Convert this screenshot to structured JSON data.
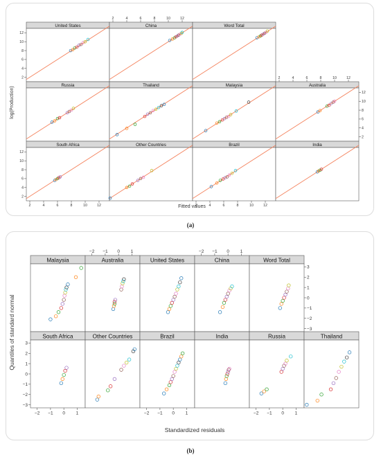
{
  "figure_a": {
    "caption": "(a)",
    "xlabel": "Fitted values",
    "ylabel": "log(Production)",
    "tick_labels": [
      "2",
      "4",
      "6",
      "8",
      "10",
      "12"
    ]
  },
  "figure_b": {
    "caption": "(b)",
    "xlabel": "Standardized residuals",
    "ylabel": "Quantiles of standard normal",
    "x_tick_labels": [
      "−2",
      "−1",
      "0",
      "1"
    ],
    "y_tick_labels": [
      "−3",
      "−2",
      "−1",
      "0",
      "1",
      "2",
      "3"
    ]
  },
  "colors": {
    "fit_line": "#f4845f",
    "strip_bg": "#d9d9d9",
    "series": [
      "#1f77b4",
      "#ff7f0e",
      "#2ca02c",
      "#d62728",
      "#9467bd",
      "#8c564b",
      "#e377c2",
      "#bcbd22",
      "#17becf",
      "#3a3a3a"
    ]
  },
  "chart_data": [
    {
      "type": "scatter",
      "title": "",
      "xlabel": "Fitted values",
      "ylabel": "log(Production)",
      "xlim": [
        1.5,
        13.5
      ],
      "ylim": [
        1,
        13
      ],
      "grid": false,
      "reference_line": "y = x",
      "panels": [
        {
          "name": "United States",
          "x": [
            7.9,
            8.2,
            8.5,
            8.8,
            9.1,
            9.4,
            9.7,
            10.0,
            10.4
          ],
          "y": [
            8.0,
            8.2,
            8.6,
            8.8,
            9.2,
            9.4,
            9.8,
            10.0,
            10.5
          ]
        },
        {
          "name": "China",
          "x": [
            10.2,
            10.6,
            10.9,
            11.1,
            11.3,
            11.5,
            11.7,
            11.9,
            12.0
          ],
          "y": [
            10.3,
            10.6,
            10.9,
            11.1,
            11.3,
            11.5,
            11.7,
            11.9,
            12.1
          ]
        },
        {
          "name": "Word Total",
          "x": [
            10.8,
            11.1,
            11.3,
            11.5,
            11.7,
            11.9,
            12.1,
            12.3
          ],
          "y": [
            10.9,
            11.1,
            11.3,
            11.5,
            11.7,
            11.9,
            12.1,
            12.4
          ]
        },
        {
          "name": "Russia",
          "x": [
            5.2,
            5.6,
            6.0,
            6.3,
            7.4,
            7.7,
            8.0,
            8.3
          ],
          "y": [
            5.3,
            5.6,
            6.1,
            6.3,
            7.4,
            7.7,
            8.0,
            8.4
          ]
        },
        {
          "name": "Thailand",
          "x": [
            2.6,
            4.0,
            5.2,
            6.6,
            7.0,
            7.4,
            7.8,
            8.2,
            8.6,
            9.0,
            9.4
          ],
          "y": [
            2.5,
            3.9,
            4.8,
            6.6,
            7.1,
            7.4,
            7.9,
            8.2,
            8.6,
            9.0,
            9.3
          ]
        },
        {
          "name": "Malaysia",
          "x": [
            3.4,
            5.0,
            5.4,
            5.8,
            6.1,
            6.4,
            6.7,
            7.0,
            7.8,
            9.6
          ],
          "y": [
            3.4,
            5.1,
            5.4,
            5.8,
            6.1,
            6.4,
            6.6,
            7.0,
            7.8,
            9.8
          ]
        },
        {
          "name": "Australia",
          "x": [
            7.6,
            7.9,
            8.9,
            9.2,
            9.5,
            9.8,
            10.0
          ],
          "y": [
            7.6,
            7.9,
            8.9,
            9.1,
            9.5,
            9.8,
            10.0
          ]
        },
        {
          "name": "South Africa",
          "x": [
            5.6,
            5.8,
            6.0,
            6.2,
            6.4
          ],
          "y": [
            5.6,
            5.8,
            6.0,
            6.2,
            6.4
          ]
        },
        {
          "name": "Other Countries",
          "x": [
            1.6,
            4.0,
            4.4,
            4.8,
            5.6,
            6.0,
            6.4,
            7.6
          ],
          "y": [
            1.6,
            4.0,
            4.3,
            4.8,
            5.6,
            6.0,
            6.3,
            7.8
          ]
        },
        {
          "name": "Brazil",
          "x": [
            4.2,
            5.0,
            5.5,
            5.9,
            6.2,
            6.5,
            6.8,
            7.2,
            7.7
          ],
          "y": [
            4.2,
            5.0,
            5.6,
            5.9,
            6.2,
            6.4,
            6.8,
            7.2,
            7.8
          ]
        },
        {
          "name": "India",
          "x": [
            7.5,
            7.7,
            7.9,
            8.1
          ],
          "y": [
            7.5,
            7.7,
            7.9,
            8.1
          ]
        }
      ]
    },
    {
      "type": "scatter",
      "title": "",
      "xlabel": "Standardized residuals",
      "ylabel": "Quantiles of standard normal",
      "xlim": [
        -2.5,
        1.6
      ],
      "ylim": [
        -3.3,
        3.3
      ],
      "grid": false,
      "panels": [
        {
          "name": "Malaysia",
          "x": [
            -1.0,
            -0.6,
            -0.4,
            -0.2,
            -0.1,
            0.0,
            0.05,
            0.1,
            0.15,
            0.2,
            0.3,
            0.9,
            1.3
          ],
          "y": [
            -2.1,
            -1.8,
            -1.4,
            -1.0,
            -0.6,
            -0.2,
            0.2,
            0.5,
            0.8,
            1.0,
            1.3,
            2.0,
            2.9
          ]
        },
        {
          "name": "Australia",
          "x": [
            -0.4,
            -0.35,
            -0.3,
            -0.3,
            -0.25,
            0.2,
            0.25,
            0.3,
            0.35,
            0.4
          ],
          "y": [
            -1.1,
            -0.8,
            -0.6,
            -0.4,
            -0.2,
            0.8,
            1.1,
            1.4,
            1.6,
            1.8
          ]
        },
        {
          "name": "United States",
          "x": [
            -0.4,
            -0.3,
            -0.2,
            -0.1,
            0.0,
            0.1,
            0.2,
            0.3,
            0.4,
            0.5,
            0.6
          ],
          "y": [
            -1.4,
            -1.1,
            -0.8,
            -0.5,
            -0.2,
            0.1,
            0.4,
            0.8,
            1.1,
            1.5,
            1.9
          ]
        },
        {
          "name": "China",
          "x": [
            -0.6,
            -0.4,
            -0.3,
            -0.2,
            -0.1,
            0.0,
            0.1,
            0.2,
            0.3
          ],
          "y": [
            -1.4,
            -0.9,
            -0.5,
            -0.2,
            0.1,
            0.4,
            0.7,
            0.9,
            1.1
          ]
        },
        {
          "name": "Word Total",
          "x": [
            -0.2,
            -0.1,
            0.0,
            0.1,
            0.2,
            0.3,
            0.4,
            0.45
          ],
          "y": [
            -1.0,
            -0.6,
            -0.3,
            0.0,
            0.3,
            0.6,
            0.9,
            1.2
          ]
        },
        {
          "name": "South Africa",
          "x": [
            -0.2,
            -0.1,
            0.0,
            0.1,
            0.2
          ],
          "y": [
            -0.9,
            -0.5,
            -0.1,
            0.3,
            0.6
          ]
        },
        {
          "name": "Other Countries",
          "x": [
            -1.6,
            -1.5,
            -0.8,
            -0.6,
            -0.3,
            0.2,
            0.4,
            0.6,
            0.8,
            1.1,
            1.2
          ],
          "y": [
            -2.5,
            -2.2,
            -1.6,
            -1.2,
            -0.5,
            0.4,
            0.8,
            1.1,
            1.4,
            2.2,
            2.4
          ]
        },
        {
          "name": "Brazil",
          "x": [
            -0.7,
            -0.5,
            -0.3,
            -0.2,
            -0.1,
            0.0,
            0.1,
            0.2,
            0.3,
            0.4,
            0.5,
            0.6,
            0.7
          ],
          "y": [
            -1.9,
            -1.5,
            -1.1,
            -0.8,
            -0.5,
            -0.2,
            0.2,
            0.5,
            0.8,
            1.1,
            1.4,
            1.7,
            2.0
          ]
        },
        {
          "name": "India",
          "x": [
            -0.2,
            -0.15,
            -0.1,
            -0.05,
            0.0,
            0.05,
            0.1
          ],
          "y": [
            -0.9,
            -0.5,
            -0.2,
            0.0,
            0.2,
            0.4,
            0.5
          ]
        },
        {
          "name": "Russia",
          "x": [
            -1.6,
            -1.4,
            -1.2,
            -0.1,
            0.0,
            0.1,
            0.2,
            0.3,
            0.6
          ],
          "y": [
            -1.9,
            -1.7,
            -1.5,
            0.2,
            0.5,
            0.8,
            1.0,
            1.3,
            1.7
          ]
        },
        {
          "name": "Thailand",
          "x": [
            -2.3,
            -1.5,
            -1.2,
            -0.5,
            -0.3,
            -0.1,
            0.1,
            0.3,
            0.5,
            0.7,
            0.9
          ],
          "y": [
            -3.0,
            -2.6,
            -2.0,
            -1.5,
            -0.9,
            -0.4,
            0.2,
            0.7,
            1.2,
            1.6,
            2.1
          ]
        }
      ]
    }
  ]
}
